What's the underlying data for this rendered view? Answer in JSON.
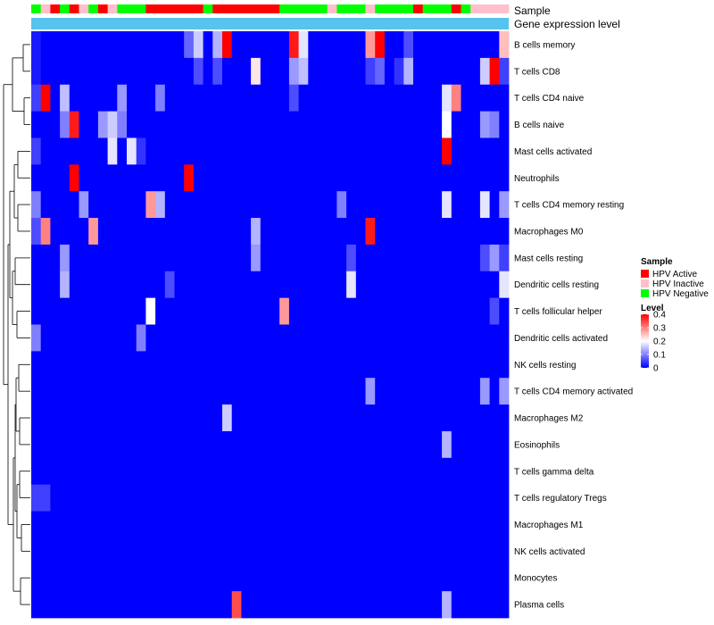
{
  "chart_data": {
    "type": "heatmap",
    "title": "",
    "annotation_rows": [
      {
        "label": "Sample"
      },
      {
        "label": "Gene expression level"
      }
    ],
    "sample_groups": [
      "Negative",
      "Inactive",
      "Active",
      "Negative",
      "Active",
      "Inactive",
      "Negative",
      "Active",
      "Inactive",
      "Negative",
      "Negative",
      "Negative",
      "Active",
      "Active",
      "Active",
      "Active",
      "Active",
      "Active",
      "Negative",
      "Active",
      "Active",
      "Active",
      "Active",
      "Active",
      "Active",
      "Active",
      "Negative",
      "Negative",
      "Negative",
      "Negative",
      "Negative",
      "Inactive",
      "Negative",
      "Negative",
      "Negative",
      "Inactive",
      "Negative",
      "Negative",
      "Negative",
      "Negative",
      "Active",
      "Negative",
      "Negative",
      "Negative",
      "Active",
      "Negative",
      "Inactive",
      "Inactive",
      "Inactive",
      "Inactive"
    ],
    "rows": [
      "B cells memory",
      "T cells CD8",
      "T cells CD4 naive",
      "B cells naive",
      "Mast cells activated",
      "Neutrophils",
      "T cells CD4 memory resting",
      "Macrophages M0",
      "Mast cells resting",
      "Dendritic cells resting",
      "T cells follicular helper",
      "Dendritic cells activated",
      "NK cells resting",
      "T cells CD4 memory activated",
      "Macrophages M2",
      "Eosinophils",
      "T cells gamma delta",
      "T cells regulatory  Tregs",
      "Macrophages M1",
      "NK cells activated",
      "Monocytes",
      "Plasma cells"
    ],
    "values": [
      [
        0.02,
        0.0,
        0.0,
        0.0,
        0.0,
        0.0,
        0.0,
        0.0,
        0.0,
        0.0,
        0.0,
        0.0,
        0.0,
        0.0,
        0.0,
        0.0,
        0.08,
        0.16,
        0.0,
        0.14,
        0.4,
        0.0,
        0.0,
        0.0,
        0.0,
        0.0,
        0.0,
        0.38,
        0.18,
        0.0,
        0.0,
        0.0,
        0.0,
        0.0,
        0.0,
        0.28,
        0.4,
        0.0,
        0.0,
        0.06,
        0.0,
        0.0,
        0.0,
        0.0,
        0.0,
        0.0,
        0.0,
        0.0,
        0.0,
        0.25
      ],
      [
        0.02,
        0.0,
        0.0,
        0.0,
        0.0,
        0.0,
        0.0,
        0.0,
        0.0,
        0.0,
        0.0,
        0.0,
        0.0,
        0.0,
        0.0,
        0.0,
        0.0,
        0.06,
        0.0,
        0.06,
        0.0,
        0.0,
        0.0,
        0.22,
        0.0,
        0.0,
        0.0,
        0.12,
        0.15,
        0.0,
        0.0,
        0.0,
        0.0,
        0.0,
        0.0,
        0.05,
        0.08,
        0.0,
        0.04,
        0.14,
        0.0,
        0.0,
        0.0,
        0.0,
        0.0,
        0.0,
        0.0,
        0.16,
        0.42,
        0.05
      ],
      [
        0.05,
        0.42,
        0.0,
        0.15,
        0.0,
        0.0,
        0.0,
        0.0,
        0.0,
        0.12,
        0.0,
        0.0,
        0.0,
        0.1,
        0.0,
        0.0,
        0.0,
        0.0,
        0.0,
        0.0,
        0.0,
        0.0,
        0.0,
        0.0,
        0.0,
        0.0,
        0.0,
        0.06,
        0.0,
        0.0,
        0.0,
        0.0,
        0.0,
        0.0,
        0.0,
        0.0,
        0.0,
        0.0,
        0.0,
        0.0,
        0.0,
        0.0,
        0.0,
        0.18,
        0.3,
        0.0,
        0.0,
        0.0,
        0.0,
        0.0
      ],
      [
        0.0,
        0.0,
        0.0,
        0.1,
        0.38,
        0.0,
        0.0,
        0.12,
        0.16,
        0.1,
        0.0,
        0.0,
        0.0,
        0.0,
        0.0,
        0.0,
        0.0,
        0.0,
        0.0,
        0.0,
        0.0,
        0.0,
        0.0,
        0.0,
        0.0,
        0.0,
        0.0,
        0.0,
        0.0,
        0.0,
        0.0,
        0.0,
        0.0,
        0.0,
        0.0,
        0.0,
        0.0,
        0.0,
        0.0,
        0.0,
        0.0,
        0.0,
        0.0,
        0.2,
        0.0,
        0.0,
        0.0,
        0.12,
        0.1,
        0.0
      ],
      [
        0.05,
        0.0,
        0.0,
        0.0,
        0.0,
        0.0,
        0.0,
        0.0,
        0.18,
        0.0,
        0.18,
        0.04,
        0.0,
        0.0,
        0.0,
        0.0,
        0.0,
        0.0,
        0.0,
        0.0,
        0.0,
        0.0,
        0.0,
        0.0,
        0.0,
        0.0,
        0.0,
        0.0,
        0.0,
        0.0,
        0.0,
        0.0,
        0.0,
        0.0,
        0.0,
        0.0,
        0.0,
        0.0,
        0.0,
        0.0,
        0.0,
        0.0,
        0.0,
        0.44,
        0.0,
        0.0,
        0.0,
        0.0,
        0.0,
        0.0
      ],
      [
        0.0,
        0.0,
        0.0,
        0.0,
        0.42,
        0.0,
        0.0,
        0.0,
        0.0,
        0.0,
        0.0,
        0.0,
        0.0,
        0.0,
        0.0,
        0.0,
        0.42,
        0.0,
        0.0,
        0.0,
        0.0,
        0.0,
        0.0,
        0.0,
        0.0,
        0.0,
        0.0,
        0.0,
        0.0,
        0.0,
        0.0,
        0.0,
        0.0,
        0.0,
        0.0,
        0.0,
        0.0,
        0.0,
        0.0,
        0.0,
        0.0,
        0.0,
        0.0,
        0.0,
        0.0,
        0.0,
        0.0,
        0.0,
        0.0,
        0.0
      ],
      [
        0.1,
        0.0,
        0.0,
        0.0,
        0.0,
        0.12,
        0.0,
        0.0,
        0.0,
        0.0,
        0.0,
        0.0,
        0.28,
        0.14,
        0.0,
        0.0,
        0.0,
        0.0,
        0.0,
        0.0,
        0.0,
        0.0,
        0.0,
        0.0,
        0.0,
        0.0,
        0.0,
        0.0,
        0.0,
        0.0,
        0.0,
        0.0,
        0.1,
        0.0,
        0.0,
        0.0,
        0.0,
        0.0,
        0.0,
        0.0,
        0.0,
        0.0,
        0.0,
        0.18,
        0.0,
        0.0,
        0.0,
        0.18,
        0.0,
        0.12
      ],
      [
        0.06,
        0.3,
        0.0,
        0.0,
        0.0,
        0.0,
        0.28,
        0.0,
        0.0,
        0.0,
        0.0,
        0.0,
        0.0,
        0.0,
        0.0,
        0.0,
        0.0,
        0.0,
        0.0,
        0.0,
        0.0,
        0.0,
        0.0,
        0.14,
        0.0,
        0.0,
        0.0,
        0.0,
        0.0,
        0.0,
        0.0,
        0.0,
        0.0,
        0.0,
        0.0,
        0.38,
        0.0,
        0.0,
        0.0,
        0.0,
        0.0,
        0.0,
        0.0,
        0.0,
        0.0,
        0.0,
        0.0,
        0.0,
        0.0,
        0.0
      ],
      [
        0.0,
        0.0,
        0.0,
        0.12,
        0.0,
        0.0,
        0.0,
        0.0,
        0.0,
        0.0,
        0.0,
        0.0,
        0.0,
        0.0,
        0.0,
        0.0,
        0.0,
        0.0,
        0.0,
        0.0,
        0.0,
        0.0,
        0.0,
        0.12,
        0.0,
        0.0,
        0.0,
        0.0,
        0.0,
        0.0,
        0.0,
        0.0,
        0.0,
        0.06,
        0.0,
        0.0,
        0.0,
        0.0,
        0.0,
        0.0,
        0.0,
        0.0,
        0.0,
        0.0,
        0.0,
        0.0,
        0.0,
        0.06,
        0.12,
        0.05
      ],
      [
        0.0,
        0.0,
        0.0,
        0.14,
        0.0,
        0.0,
        0.0,
        0.0,
        0.0,
        0.0,
        0.0,
        0.0,
        0.0,
        0.0,
        0.06,
        0.0,
        0.0,
        0.0,
        0.0,
        0.0,
        0.0,
        0.0,
        0.0,
        0.0,
        0.0,
        0.0,
        0.0,
        0.0,
        0.0,
        0.0,
        0.0,
        0.0,
        0.0,
        0.18,
        0.0,
        0.0,
        0.0,
        0.0,
        0.0,
        0.0,
        0.0,
        0.0,
        0.0,
        0.0,
        0.0,
        0.0,
        0.0,
        0.0,
        0.0,
        0.18
      ],
      [
        0.0,
        0.0,
        0.0,
        0.0,
        0.0,
        0.0,
        0.0,
        0.0,
        0.0,
        0.0,
        0.0,
        0.0,
        0.2,
        0.0,
        0.0,
        0.0,
        0.0,
        0.0,
        0.0,
        0.0,
        0.0,
        0.0,
        0.0,
        0.0,
        0.0,
        0.0,
        0.28,
        0.0,
        0.0,
        0.0,
        0.0,
        0.0,
        0.0,
        0.0,
        0.0,
        0.0,
        0.0,
        0.0,
        0.0,
        0.0,
        0.0,
        0.0,
        0.0,
        0.0,
        0.0,
        0.0,
        0.0,
        0.0,
        0.06,
        0.0
      ],
      [
        0.1,
        0.0,
        0.0,
        0.0,
        0.0,
        0.0,
        0.0,
        0.0,
        0.0,
        0.0,
        0.0,
        0.1,
        0.0,
        0.0,
        0.0,
        0.0,
        0.0,
        0.0,
        0.0,
        0.0,
        0.0,
        0.0,
        0.0,
        0.0,
        0.0,
        0.0,
        0.0,
        0.0,
        0.0,
        0.0,
        0.0,
        0.0,
        0.0,
        0.0,
        0.0,
        0.0,
        0.0,
        0.0,
        0.0,
        0.0,
        0.0,
        0.0,
        0.0,
        0.0,
        0.0,
        0.0,
        0.0,
        0.0,
        0.0,
        0.0
      ],
      [
        0.0,
        0.0,
        0.0,
        0.0,
        0.0,
        0.0,
        0.0,
        0.0,
        0.0,
        0.0,
        0.0,
        0.0,
        0.0,
        0.0,
        0.0,
        0.0,
        0.0,
        0.0,
        0.0,
        0.0,
        0.0,
        0.0,
        0.0,
        0.0,
        0.0,
        0.0,
        0.0,
        0.0,
        0.0,
        0.0,
        0.0,
        0.0,
        0.0,
        0.0,
        0.0,
        0.0,
        0.0,
        0.0,
        0.0,
        0.0,
        0.0,
        0.0,
        0.0,
        0.0,
        0.0,
        0.0,
        0.0,
        0.0,
        0.0,
        0.0
      ],
      [
        0.0,
        0.0,
        0.0,
        0.0,
        0.0,
        0.0,
        0.0,
        0.0,
        0.0,
        0.0,
        0.0,
        0.0,
        0.0,
        0.0,
        0.0,
        0.0,
        0.0,
        0.0,
        0.0,
        0.0,
        0.0,
        0.0,
        0.0,
        0.0,
        0.0,
        0.0,
        0.0,
        0.0,
        0.0,
        0.0,
        0.0,
        0.0,
        0.0,
        0.0,
        0.0,
        0.12,
        0.0,
        0.0,
        0.0,
        0.0,
        0.0,
        0.0,
        0.0,
        0.0,
        0.0,
        0.0,
        0.0,
        0.12,
        0.0,
        0.12
      ],
      [
        0.0,
        0.0,
        0.0,
        0.0,
        0.0,
        0.0,
        0.0,
        0.0,
        0.0,
        0.0,
        0.0,
        0.0,
        0.0,
        0.0,
        0.0,
        0.0,
        0.0,
        0.0,
        0.0,
        0.0,
        0.16,
        0.0,
        0.0,
        0.0,
        0.0,
        0.0,
        0.0,
        0.0,
        0.0,
        0.0,
        0.0,
        0.0,
        0.0,
        0.0,
        0.0,
        0.0,
        0.0,
        0.0,
        0.0,
        0.0,
        0.0,
        0.0,
        0.0,
        0.0,
        0.0,
        0.0,
        0.0,
        0.0,
        0.0,
        0.0
      ],
      [
        0.0,
        0.0,
        0.0,
        0.0,
        0.0,
        0.0,
        0.0,
        0.0,
        0.0,
        0.0,
        0.0,
        0.0,
        0.0,
        0.0,
        0.0,
        0.0,
        0.0,
        0.0,
        0.0,
        0.0,
        0.0,
        0.0,
        0.0,
        0.0,
        0.0,
        0.0,
        0.0,
        0.0,
        0.0,
        0.0,
        0.0,
        0.0,
        0.0,
        0.0,
        0.0,
        0.0,
        0.0,
        0.0,
        0.0,
        0.0,
        0.0,
        0.0,
        0.0,
        0.14,
        0.0,
        0.0,
        0.0,
        0.0,
        0.0,
        0.0
      ],
      [
        0.0,
        0.0,
        0.0,
        0.0,
        0.0,
        0.0,
        0.0,
        0.0,
        0.0,
        0.0,
        0.0,
        0.0,
        0.0,
        0.0,
        0.0,
        0.0,
        0.0,
        0.0,
        0.0,
        0.0,
        0.0,
        0.0,
        0.0,
        0.0,
        0.0,
        0.0,
        0.0,
        0.0,
        0.0,
        0.0,
        0.0,
        0.0,
        0.0,
        0.0,
        0.0,
        0.0,
        0.0,
        0.0,
        0.0,
        0.0,
        0.0,
        0.0,
        0.0,
        0.0,
        0.0,
        0.0,
        0.0,
        0.0,
        0.0,
        0.0
      ],
      [
        0.05,
        0.05,
        0.0,
        0.0,
        0.0,
        0.0,
        0.0,
        0.0,
        0.0,
        0.0,
        0.0,
        0.0,
        0.0,
        0.0,
        0.0,
        0.0,
        0.0,
        0.0,
        0.0,
        0.0,
        0.0,
        0.0,
        0.0,
        0.0,
        0.0,
        0.0,
        0.0,
        0.0,
        0.0,
        0.0,
        0.0,
        0.0,
        0.0,
        0.0,
        0.0,
        0.0,
        0.0,
        0.0,
        0.0,
        0.0,
        0.0,
        0.0,
        0.0,
        0.0,
        0.0,
        0.0,
        0.0,
        0.0,
        0.0,
        0.0
      ],
      [
        0.0,
        0.0,
        0.0,
        0.0,
        0.0,
        0.0,
        0.0,
        0.0,
        0.0,
        0.0,
        0.0,
        0.0,
        0.0,
        0.0,
        0.0,
        0.0,
        0.0,
        0.0,
        0.0,
        0.0,
        0.0,
        0.0,
        0.0,
        0.0,
        0.0,
        0.0,
        0.0,
        0.0,
        0.0,
        0.0,
        0.0,
        0.0,
        0.0,
        0.0,
        0.0,
        0.0,
        0.0,
        0.0,
        0.0,
        0.0,
        0.0,
        0.0,
        0.0,
        0.0,
        0.0,
        0.0,
        0.0,
        0.0,
        0.0,
        0.0
      ],
      [
        0.0,
        0.0,
        0.0,
        0.0,
        0.0,
        0.0,
        0.0,
        0.0,
        0.0,
        0.0,
        0.0,
        0.0,
        0.0,
        0.0,
        0.0,
        0.0,
        0.0,
        0.0,
        0.0,
        0.0,
        0.0,
        0.0,
        0.0,
        0.0,
        0.0,
        0.0,
        0.0,
        0.0,
        0.0,
        0.0,
        0.0,
        0.0,
        0.0,
        0.0,
        0.0,
        0.0,
        0.0,
        0.0,
        0.0,
        0.0,
        0.0,
        0.0,
        0.0,
        0.0,
        0.0,
        0.0,
        0.0,
        0.0,
        0.0,
        0.0
      ],
      [
        0.0,
        0.0,
        0.0,
        0.0,
        0.0,
        0.0,
        0.0,
        0.0,
        0.0,
        0.0,
        0.0,
        0.0,
        0.0,
        0.0,
        0.0,
        0.0,
        0.0,
        0.0,
        0.0,
        0.0,
        0.0,
        0.0,
        0.0,
        0.0,
        0.0,
        0.0,
        0.0,
        0.0,
        0.0,
        0.0,
        0.0,
        0.0,
        0.0,
        0.0,
        0.0,
        0.0,
        0.0,
        0.0,
        0.0,
        0.0,
        0.0,
        0.0,
        0.0,
        0.0,
        0.0,
        0.0,
        0.0,
        0.0,
        0.0,
        0.0
      ],
      [
        0.0,
        0.0,
        0.0,
        0.0,
        0.0,
        0.0,
        0.0,
        0.0,
        0.0,
        0.0,
        0.0,
        0.0,
        0.0,
        0.0,
        0.0,
        0.0,
        0.0,
        0.0,
        0.0,
        0.0,
        0.0,
        0.34,
        0.0,
        0.0,
        0.0,
        0.0,
        0.0,
        0.0,
        0.0,
        0.0,
        0.0,
        0.0,
        0.0,
        0.0,
        0.0,
        0.0,
        0.0,
        0.0,
        0.0,
        0.0,
        0.0,
        0.0,
        0.0,
        0.14,
        0.0,
        0.0,
        0.0,
        0.0,
        0.0,
        0.0
      ]
    ],
    "color_scale": {
      "title": "Level",
      "min": 0,
      "max": 0.4,
      "ticks": [
        0,
        0.1,
        0.2,
        0.3,
        0.4
      ],
      "tick_labels": [
        "0",
        "0.1",
        "0.2",
        "0.3",
        "0.4"
      ],
      "low_color": "#0000ff",
      "mid_color": "#ffffff",
      "high_color": "#ff0000"
    },
    "legend": {
      "title": "Sample",
      "placement": "right",
      "entries": [
        {
          "key": "Active",
          "label": "HPV Active",
          "color": "#ff0000"
        },
        {
          "key": "Inactive",
          "label": "HPV Inactive",
          "color": "#ffc0cb"
        },
        {
          "key": "Negative",
          "label": "HPV Negative",
          "color": "#00ff00"
        }
      ]
    },
    "expression_bar_color": "#56c4ee",
    "dendrogram": {
      "side": "left"
    }
  }
}
